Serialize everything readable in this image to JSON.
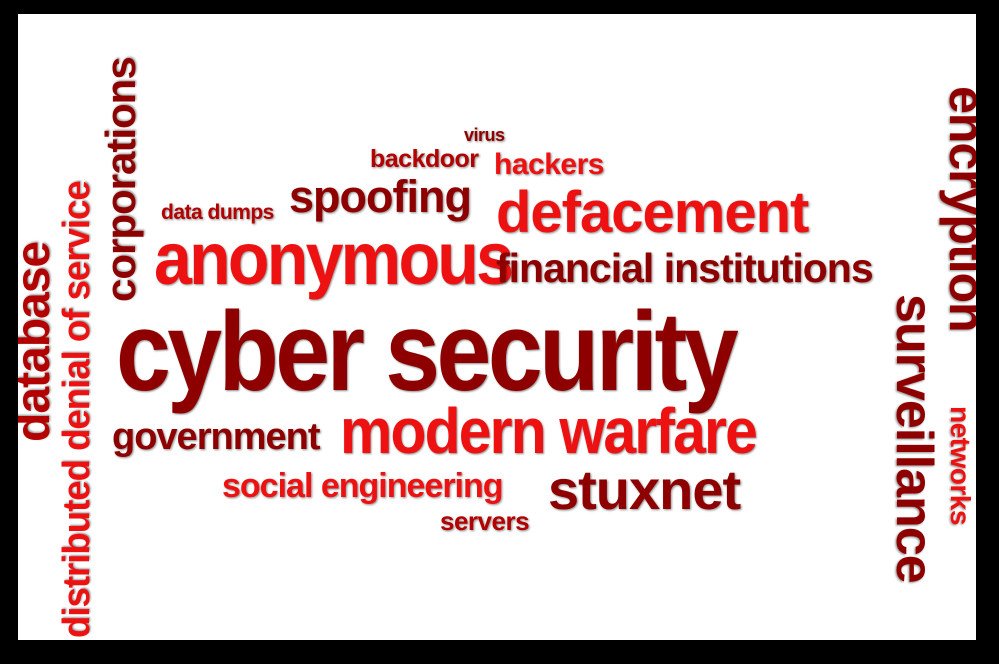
{
  "word_cloud": {
    "colors": {
      "bright": "#ee1111",
      "dark": "#b30000",
      "deep": "#8e0000",
      "background": "#ffffff",
      "border": "#000000"
    },
    "words": {
      "cyber_security": "cyber security",
      "modern_warfare": "modern warfare",
      "anonymous": "anonymous",
      "defacement": "defacement",
      "financial_institutions": "financial institutions",
      "spoofing": "spoofing",
      "backdoor": "backdoor",
      "hackers": "hackers",
      "virus": "virus",
      "data_dumps": "data dumps",
      "government": "government",
      "social_engineering": "social engineering",
      "stuxnet": "stuxnet",
      "servers": "servers",
      "corporations": "corporations",
      "distributed_denial_of_service": "distributed denial of service",
      "database": "database",
      "encryption": "encryption",
      "surveillance": "surveillance",
      "networks": "networks"
    }
  }
}
